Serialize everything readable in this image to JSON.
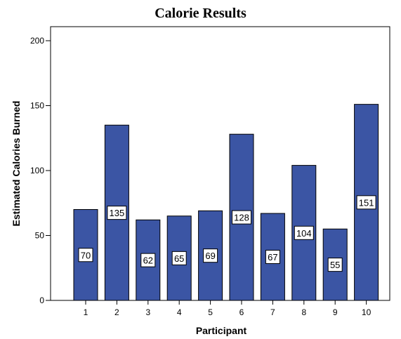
{
  "chart_data": {
    "type": "bar",
    "title": "Calorie Results",
    "xlabel": "Participant",
    "ylabel": "Estimated Calories Burned",
    "categories": [
      "1",
      "2",
      "3",
      "4",
      "5",
      "6",
      "7",
      "8",
      "9",
      "10"
    ],
    "values": [
      70,
      135,
      62,
      65,
      69,
      128,
      67,
      104,
      55,
      151
    ],
    "data_labels": [
      "70",
      "135",
      "62",
      "65",
      "69",
      "128",
      "67",
      "104",
      "55",
      "151"
    ],
    "ylim": [
      0,
      200
    ],
    "yticks": [
      0,
      50,
      100,
      150,
      200
    ],
    "grid": false,
    "legend": "none",
    "colors": {
      "bar_fill": "#3b55a4",
      "bar_stroke": "#000000",
      "label_bg": "#ffffff"
    }
  }
}
